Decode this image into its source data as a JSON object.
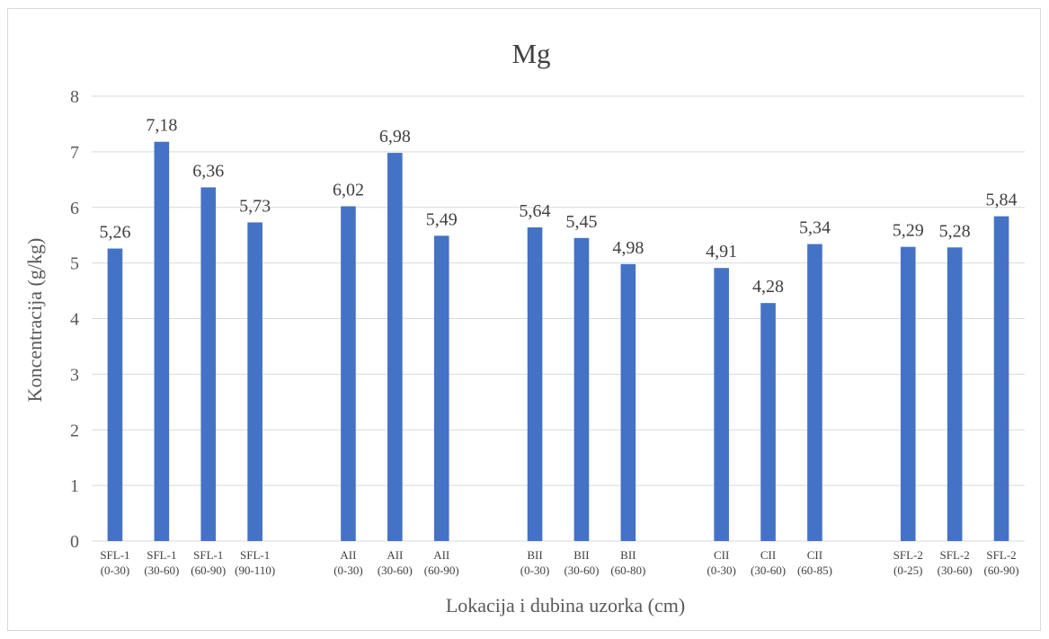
{
  "chart_data": {
    "type": "bar",
    "title": "Mg",
    "xlabel": "Lokacija i dubina uzorka (cm)",
    "ylabel": "Koncentracija (g/kg)",
    "ylim": [
      0,
      8
    ],
    "yticks": [
      "0",
      "1",
      "2",
      "3",
      "4",
      "5",
      "6",
      "7",
      "8"
    ],
    "grid": true,
    "bar_color": "#4472c4",
    "groups": [
      {
        "bars": [
          {
            "line1": "SFL-1",
            "line2": "(0-30)",
            "value": 5.26,
            "label": "5,26"
          },
          {
            "line1": "SFL-1",
            "line2": "(30-60)",
            "value": 7.18,
            "label": "7,18"
          },
          {
            "line1": "SFL-1",
            "line2": "(60-90)",
            "value": 6.36,
            "label": "6,36"
          },
          {
            "line1": "SFL-1",
            "line2": "(90-110)",
            "value": 5.73,
            "label": "5,73"
          }
        ]
      },
      {
        "bars": [
          {
            "line1": "AII",
            "line2": "(0-30)",
            "value": 6.02,
            "label": "6,02"
          },
          {
            "line1": "AII",
            "line2": "(30-60)",
            "value": 6.98,
            "label": "6,98"
          },
          {
            "line1": "AII",
            "line2": "(60-90)",
            "value": 5.49,
            "label": "5,49"
          }
        ]
      },
      {
        "bars": [
          {
            "line1": "BII",
            "line2": "(0-30)",
            "value": 5.64,
            "label": "5,64"
          },
          {
            "line1": "BII",
            "line2": "(30-60)",
            "value": 5.45,
            "label": "5,45"
          },
          {
            "line1": "BII",
            "line2": "(60-80)",
            "value": 4.98,
            "label": "4,98"
          }
        ]
      },
      {
        "bars": [
          {
            "line1": "CII",
            "line2": "(0-30)",
            "value": 4.91,
            "label": "4,91"
          },
          {
            "line1": "CII",
            "line2": "(30-60)",
            "value": 4.28,
            "label": "4,28"
          },
          {
            "line1": "CII",
            "line2": "(60-85)",
            "value": 5.34,
            "label": "5,34"
          }
        ]
      },
      {
        "bars": [
          {
            "line1": "SFL-2",
            "line2": "(0-25)",
            "value": 5.29,
            "label": "5,29"
          },
          {
            "line1": "SFL-2",
            "line2": "(30-60)",
            "value": 5.28,
            "label": "5,28"
          },
          {
            "line1": "SFL-2",
            "line2": "(60-90)",
            "value": 5.84,
            "label": "5,84"
          }
        ]
      }
    ]
  }
}
